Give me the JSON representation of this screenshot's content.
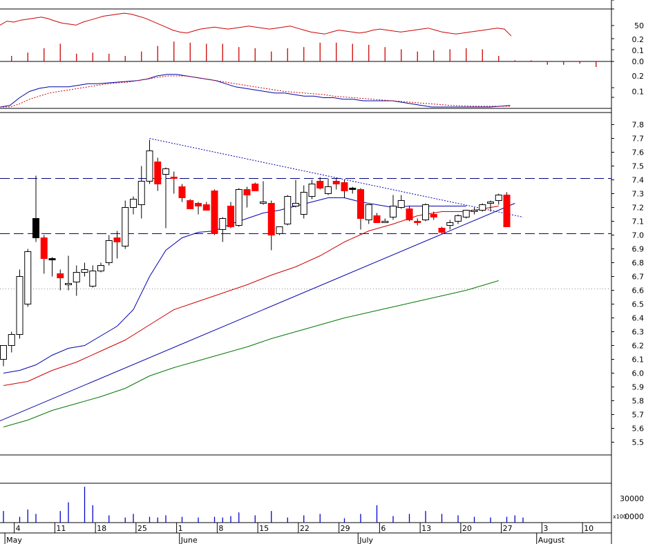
{
  "chart_data": [
    {
      "type": "line",
      "panel": "oscillator",
      "y_ticks": [
        "50"
      ],
      "series": [
        {
          "color": "#cc0000",
          "values": [
            62,
            70,
            68,
            72,
            74,
            76,
            78,
            75,
            70,
            66,
            64,
            62,
            68,
            72,
            76,
            80,
            82,
            84,
            86,
            84,
            80,
            76,
            70,
            64,
            58,
            52,
            48,
            46,
            50,
            54,
            56,
            58,
            56,
            54,
            56,
            58,
            60,
            58,
            56,
            54,
            56,
            58,
            60,
            56,
            52,
            48,
            46,
            44,
            48,
            52,
            50,
            48,
            46,
            48,
            52,
            54,
            52,
            50,
            48,
            50,
            52,
            54,
            56,
            52,
            48,
            46,
            44,
            46,
            48,
            50,
            52,
            54,
            56,
            54,
            40
          ]
        }
      ]
    },
    {
      "type": "bar",
      "panel": "histogram",
      "y_ticks": [
        "0.2",
        "0.1",
        "0.0"
      ],
      "bar_color": "#cc0000",
      "x_pos": [
        1,
        3,
        5,
        7,
        9,
        11,
        13,
        15,
        17,
        19,
        21,
        23,
        25,
        27,
        29,
        31,
        33,
        35,
        37,
        39,
        41,
        43,
        45,
        47,
        49,
        51,
        53,
        55,
        57,
        59,
        61,
        63,
        65,
        67,
        69,
        71,
        73
      ],
      "values": [
        0.05,
        0.08,
        0.12,
        0.16,
        0.07,
        0.08,
        0.07,
        0.05,
        0.09,
        0.14,
        0.18,
        0.17,
        0.16,
        0.16,
        0.13,
        0.12,
        0.09,
        0.12,
        0.13,
        0.17,
        0.17,
        0.16,
        0.15,
        0.13,
        0.11,
        0.09,
        0.1,
        0.11,
        0.12,
        0.11,
        0.05,
        0.01,
        0.01,
        -0.03,
        -0.03,
        -0.02,
        -0.05
      ]
    },
    {
      "type": "line",
      "panel": "signal",
      "y_ticks": [
        "0.2",
        "0.1"
      ],
      "series": [
        {
          "color": "#0000aa",
          "values": [
            0.0,
            0.01,
            0.06,
            0.1,
            0.12,
            0.13,
            0.13,
            0.13,
            0.14,
            0.15,
            0.15,
            0.155,
            0.16,
            0.165,
            0.17,
            0.18,
            0.2,
            0.21,
            0.21,
            0.2,
            0.19,
            0.18,
            0.17,
            0.15,
            0.13,
            0.12,
            0.11,
            0.1,
            0.09,
            0.09,
            0.08,
            0.07,
            0.07,
            0.06,
            0.06,
            0.05,
            0.05,
            0.04,
            0.04,
            0.04,
            0.04,
            0.03,
            0.02,
            0.01,
            0.0,
            0.0,
            0.0,
            0.0,
            0.0,
            0.0,
            0.0,
            0.005,
            0.01
          ]
        },
        {
          "color": "#cc0000",
          "values": [
            0.0,
            0.0,
            0.02,
            0.05,
            0.07,
            0.09,
            0.1,
            0.11,
            0.12,
            0.13,
            0.14,
            0.15,
            0.155,
            0.16,
            0.17,
            0.18,
            0.19,
            0.2,
            0.2,
            0.2,
            0.19,
            0.18,
            0.17,
            0.16,
            0.15,
            0.14,
            0.13,
            0.12,
            0.11,
            0.1,
            0.095,
            0.09,
            0.085,
            0.08,
            0.07,
            0.065,
            0.06,
            0.055,
            0.05,
            0.045,
            0.04,
            0.035,
            0.03,
            0.025,
            0.02,
            0.015,
            0.01,
            0.008,
            0.006,
            0.005,
            0.005,
            0.005,
            0.005
          ]
        }
      ]
    },
    {
      "type": "candlestick",
      "panel": "price",
      "y_ticks": [
        "7.8",
        "7.7",
        "7.6",
        "7.5",
        "7.4",
        "7.3",
        "7.2",
        "7.1",
        "7.0",
        "6.9",
        "6.8",
        "6.7",
        "6.6",
        "6.5",
        "6.4",
        "6.3",
        "6.2",
        "6.1",
        "6.0",
        "5.9",
        "5.8",
        "5.7",
        "5.6",
        "5.5"
      ],
      "ylim": [
        5.45,
        7.9
      ],
      "x_ticks": [
        "4",
        "11",
        "18",
        "25",
        "1",
        "8",
        "15",
        "22",
        "29",
        "6",
        "13",
        "20",
        "27",
        "3",
        "10"
      ],
      "x_tick_pos": [
        1.5,
        6.5,
        11.5,
        16.5,
        21.5,
        26.5,
        31.5,
        36.5,
        41.5,
        46.5,
        51.5,
        56.5,
        61.5,
        66.5,
        71.5
      ],
      "month_labels": [
        "May",
        "June",
        "July",
        "August"
      ],
      "month_label_pos": [
        -0.5,
        21,
        43,
        65
      ],
      "colors": {
        "up": "#ffffff",
        "down": "#ff0000",
        "down_alt": "#000000",
        "wick": "#000000",
        "reference_line": "#000080",
        "trendline": "#0000aa",
        "ma_short": "#0000aa",
        "ma_mid": "#cc0000",
        "ma_long": "#007700"
      },
      "candles": [
        {
          "o": 6.1,
          "h": 6.2,
          "l": 6.05,
          "c": 6.2
        },
        {
          "o": 6.2,
          "h": 6.3,
          "l": 6.15,
          "c": 6.28
        },
        {
          "o": 6.28,
          "h": 6.75,
          "l": 6.25,
          "c": 6.7
        },
        {
          "o": 6.5,
          "h": 6.9,
          "l": 6.48,
          "c": 6.88
        },
        {
          "o": 7.12,
          "h": 7.43,
          "l": 6.95,
          "c": 6.98,
          "alt": 1
        },
        {
          "o": 6.98,
          "h": 7.0,
          "l": 6.72,
          "c": 6.83
        },
        {
          "o": 6.83,
          "h": 6.84,
          "l": 6.7,
          "c": 6.82,
          "alt": 1
        },
        {
          "o": 6.72,
          "h": 6.75,
          "l": 6.6,
          "c": 6.69
        },
        {
          "o": 6.64,
          "h": 6.85,
          "l": 6.6,
          "c": 6.65
        },
        {
          "o": 6.66,
          "h": 6.78,
          "l": 6.56,
          "c": 6.73
        },
        {
          "o": 6.73,
          "h": 6.8,
          "l": 6.7,
          "c": 6.75
        },
        {
          "o": 6.63,
          "h": 6.78,
          "l": 6.62,
          "c": 6.74
        },
        {
          "o": 6.74,
          "h": 6.8,
          "l": 6.73,
          "c": 6.78
        },
        {
          "o": 6.8,
          "h": 7.0,
          "l": 6.78,
          "c": 6.96
        },
        {
          "o": 6.98,
          "h": 7.03,
          "l": 6.83,
          "c": 6.95
        },
        {
          "o": 6.92,
          "h": 7.25,
          "l": 6.9,
          "c": 7.2
        },
        {
          "o": 7.2,
          "h": 7.28,
          "l": 7.15,
          "c": 7.26
        },
        {
          "o": 7.22,
          "h": 7.5,
          "l": 7.12,
          "c": 7.39
        },
        {
          "o": 7.39,
          "h": 7.69,
          "l": 7.37,
          "c": 7.61
        },
        {
          "o": 7.53,
          "h": 7.56,
          "l": 7.32,
          "c": 7.37
        },
        {
          "o": 7.44,
          "h": 7.49,
          "l": 7.05,
          "c": 7.48
        },
        {
          "o": 7.42,
          "h": 7.46,
          "l": 7.3,
          "c": 7.41
        },
        {
          "o": 7.35,
          "h": 7.37,
          "l": 7.24,
          "c": 7.27
        },
        {
          "o": 7.25,
          "h": 7.26,
          "l": 7.19,
          "c": 7.19
        },
        {
          "o": 7.23,
          "h": 7.24,
          "l": 7.15,
          "c": 7.21
        },
        {
          "o": 7.22,
          "h": 7.24,
          "l": 7.18,
          "c": 7.18
        },
        {
          "o": 7.32,
          "h": 7.33,
          "l": 7.0,
          "c": 7.01
        },
        {
          "o": 7.04,
          "h": 7.13,
          "l": 6.95,
          "c": 7.12
        },
        {
          "o": 7.21,
          "h": 7.24,
          "l": 7.05,
          "c": 7.06
        },
        {
          "o": 7.07,
          "h": 7.34,
          "l": 7.06,
          "c": 7.33
        },
        {
          "o": 7.33,
          "h": 7.35,
          "l": 7.2,
          "c": 7.29
        },
        {
          "o": 7.37,
          "h": 7.38,
          "l": 7.32,
          "c": 7.32
        },
        {
          "o": 7.24,
          "h": 7.39,
          "l": 7.22,
          "c": 7.24
        },
        {
          "o": 7.23,
          "h": 7.25,
          "l": 6.89,
          "c": 7.0
        },
        {
          "o": 7.01,
          "h": 7.06,
          "l": 7.0,
          "c": 7.06
        },
        {
          "o": 7.08,
          "h": 7.29,
          "l": 7.07,
          "c": 7.28
        },
        {
          "o": 7.21,
          "h": 7.4,
          "l": 7.2,
          "c": 7.23
        },
        {
          "o": 7.15,
          "h": 7.36,
          "l": 7.12,
          "c": 7.31
        },
        {
          "o": 7.28,
          "h": 7.4,
          "l": 7.26,
          "c": 7.37
        },
        {
          "o": 7.39,
          "h": 7.42,
          "l": 7.33,
          "c": 7.34
        },
        {
          "o": 7.3,
          "h": 7.41,
          "l": 7.29,
          "c": 7.35
        },
        {
          "o": 7.39,
          "h": 7.41,
          "l": 7.33,
          "c": 7.37
        },
        {
          "o": 7.38,
          "h": 7.4,
          "l": 7.27,
          "c": 7.32
        },
        {
          "o": 7.34,
          "h": 7.35,
          "l": 7.3,
          "c": 7.33,
          "alt": 1
        },
        {
          "o": 7.33,
          "h": 7.34,
          "l": 7.04,
          "c": 7.12
        },
        {
          "o": 7.11,
          "h": 7.22,
          "l": 7.08,
          "c": 7.22
        },
        {
          "o": 7.14,
          "h": 7.16,
          "l": 7.09,
          "c": 7.09
        },
        {
          "o": 7.1,
          "h": 7.12,
          "l": 7.09,
          "c": 7.1
        },
        {
          "o": 7.13,
          "h": 7.29,
          "l": 7.11,
          "c": 7.21
        },
        {
          "o": 7.2,
          "h": 7.29,
          "l": 7.19,
          "c": 7.25
        },
        {
          "o": 7.19,
          "h": 7.21,
          "l": 7.1,
          "c": 7.11
        },
        {
          "o": 7.1,
          "h": 7.12,
          "l": 7.07,
          "c": 7.09
        },
        {
          "o": 7.11,
          "h": 7.23,
          "l": 7.1,
          "c": 7.22
        },
        {
          "o": 7.15,
          "h": 7.17,
          "l": 7.11,
          "c": 7.13
        },
        {
          "o": 7.05,
          "h": 7.06,
          "l": 7.01,
          "c": 7.02
        },
        {
          "o": 7.07,
          "h": 7.11,
          "l": 7.04,
          "c": 7.09
        },
        {
          "o": 7.1,
          "h": 7.15,
          "l": 7.08,
          "c": 7.14
        },
        {
          "o": 7.13,
          "h": 7.18,
          "l": 7.12,
          "c": 7.18
        },
        {
          "o": 7.17,
          "h": 7.2,
          "l": 7.15,
          "c": 7.18
        },
        {
          "o": 7.18,
          "h": 7.23,
          "l": 7.17,
          "c": 7.22
        },
        {
          "o": 7.23,
          "h": 7.25,
          "l": 7.17,
          "c": 7.24
        },
        {
          "o": 7.25,
          "h": 7.3,
          "l": 7.22,
          "c": 7.29
        },
        {
          "o": 7.29,
          "h": 7.31,
          "l": 7.06,
          "c": 7.06
        }
      ],
      "ma_short": [
        [
          0,
          6.0
        ],
        [
          2,
          6.02
        ],
        [
          4,
          6.06
        ],
        [
          6,
          6.13
        ],
        [
          8,
          6.18
        ],
        [
          10,
          6.2
        ],
        [
          12,
          6.27
        ],
        [
          14,
          6.34
        ],
        [
          16,
          6.46
        ],
        [
          18,
          6.7
        ],
        [
          20,
          6.89
        ],
        [
          22,
          6.98
        ],
        [
          24,
          7.02
        ],
        [
          26,
          7.03
        ],
        [
          28,
          7.08
        ],
        [
          30,
          7.12
        ],
        [
          32,
          7.16
        ],
        [
          34,
          7.18
        ],
        [
          36,
          7.21
        ],
        [
          38,
          7.24
        ],
        [
          40,
          7.27
        ],
        [
          42,
          7.27
        ],
        [
          44,
          7.24
        ],
        [
          46,
          7.22
        ],
        [
          48,
          7.2
        ],
        [
          50,
          7.21
        ],
        [
          52,
          7.21
        ],
        [
          54,
          7.21
        ],
        [
          56,
          7.21
        ],
        [
          57,
          7.21
        ]
      ],
      "ma_mid": [
        [
          0,
          5.91
        ],
        [
          3,
          5.94
        ],
        [
          6,
          6.02
        ],
        [
          9,
          6.08
        ],
        [
          12,
          6.16
        ],
        [
          15,
          6.24
        ],
        [
          18,
          6.35
        ],
        [
          21,
          6.46
        ],
        [
          24,
          6.52
        ],
        [
          27,
          6.58
        ],
        [
          30,
          6.64
        ],
        [
          33,
          6.71
        ],
        [
          36,
          6.77
        ],
        [
          39,
          6.85
        ],
        [
          42,
          6.95
        ],
        [
          45,
          7.03
        ],
        [
          48,
          7.08
        ],
        [
          51,
          7.14
        ],
        [
          54,
          7.17
        ],
        [
          57,
          7.17
        ],
        [
          61,
          7.21
        ]
      ],
      "ma_long": [
        [
          0,
          5.61
        ],
        [
          3,
          5.66
        ],
        [
          6,
          5.73
        ],
        [
          9,
          5.78
        ],
        [
          12,
          5.83
        ],
        [
          15,
          5.89
        ],
        [
          18,
          5.98
        ],
        [
          21,
          6.04
        ],
        [
          24,
          6.09
        ],
        [
          27,
          6.14
        ],
        [
          30,
          6.19
        ],
        [
          33,
          6.25
        ],
        [
          36,
          6.3
        ],
        [
          39,
          6.35
        ],
        [
          42,
          6.4
        ],
        [
          45,
          6.44
        ],
        [
          48,
          6.48
        ],
        [
          51,
          6.52
        ],
        [
          54,
          6.56
        ],
        [
          57,
          6.6
        ],
        [
          61,
          6.67
        ]
      ],
      "trendline": [
        [
          -1,
          5.64
        ],
        [
          63,
          7.23
        ]
      ],
      "resistance": [
        [
          18,
          7.7
        ],
        [
          64,
          7.13
        ]
      ],
      "reference_lines": [
        7.41,
        7.01
      ],
      "dotted_line": 6.61
    },
    {
      "type": "bar",
      "panel": "volume",
      "y_ticks": [
        "30000",
        "0000"
      ],
      "y_unit": "x100",
      "bar_color": "#0000cc",
      "x_pos": [
        0,
        2,
        3,
        4,
        7,
        8,
        10,
        11,
        13,
        15,
        16,
        18,
        19,
        20,
        22,
        24,
        26,
        27,
        28,
        29,
        31,
        33,
        35,
        37,
        39,
        42,
        44,
        46,
        48,
        50,
        52,
        54,
        56,
        58,
        60,
        62,
        63,
        64
      ],
      "values": [
        8000,
        4000,
        9000,
        6000,
        8000,
        14000,
        25000,
        12000,
        5000,
        3500,
        6000,
        4000,
        3500,
        5000,
        4000,
        3500,
        4000,
        3500,
        4500,
        7000,
        5000,
        8000,
        3500,
        5000,
        6000,
        3000,
        6000,
        12000,
        4500,
        6000,
        8000,
        6000,
        5000,
        4000,
        3500,
        4000,
        5000,
        3500
      ]
    }
  ]
}
